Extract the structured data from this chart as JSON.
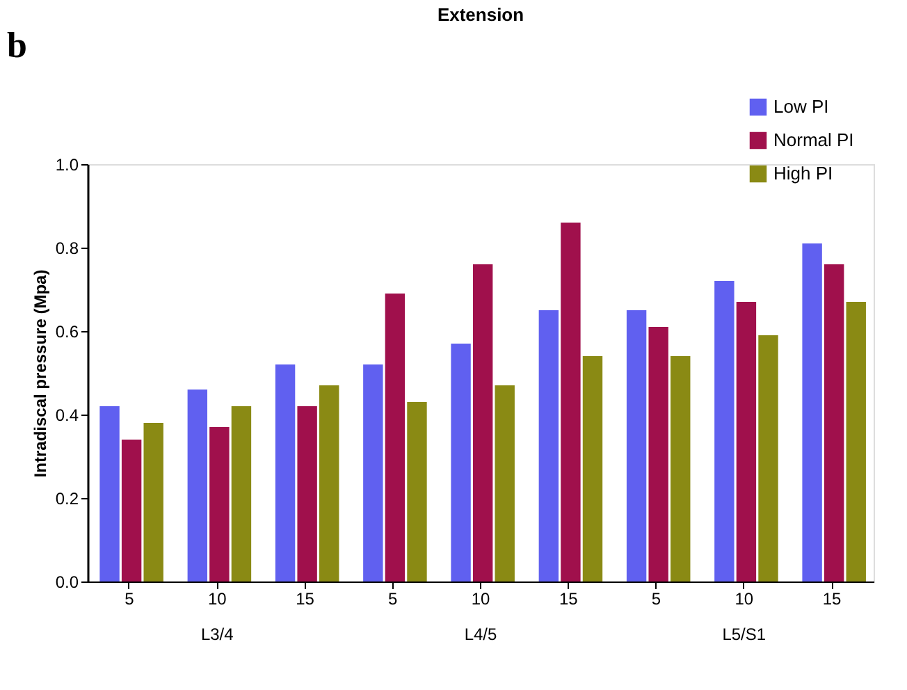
{
  "chart_data": {
    "type": "bar",
    "title": "Extension",
    "ylabel": "Intradiscal pressure (Mpa)",
    "categories": [
      "5",
      "10",
      "15",
      "5",
      "10",
      "15",
      "5",
      "10",
      "15"
    ],
    "annotations": [
      "b",
      "L3/4",
      "L4/5",
      "L5/S1"
    ],
    "series": [
      {
        "name": "Low PI",
        "color": "#6060f0",
        "values": [
          0.42,
          0.46,
          0.52,
          0.52,
          0.57,
          0.65,
          0.65,
          0.72,
          0.81
        ]
      },
      {
        "name": "Normal PI",
        "color": "#a0104c",
        "values": [
          0.34,
          0.37,
          0.42,
          0.69,
          0.76,
          0.86,
          0.61,
          0.67,
          0.76
        ]
      },
      {
        "name": "High PI",
        "color": "#8a8a14",
        "values": [
          0.38,
          0.42,
          0.47,
          0.43,
          0.47,
          0.54,
          0.54,
          0.59,
          0.67
        ]
      }
    ],
    "ylim": [
      0,
      1.0
    ],
    "yticks": [
      {
        "value": 0,
        "label": "0.0"
      },
      {
        "value": 0.2,
        "label": "0.2"
      },
      {
        "value": 0.4,
        "label": "0.4"
      },
      {
        "value": 0.6,
        "label": "0.6"
      },
      {
        "value": 0.8,
        "label": "0.8"
      },
      {
        "value": 1.0,
        "label": "1.0"
      }
    ],
    "legend": "top right",
    "grid": false
  }
}
